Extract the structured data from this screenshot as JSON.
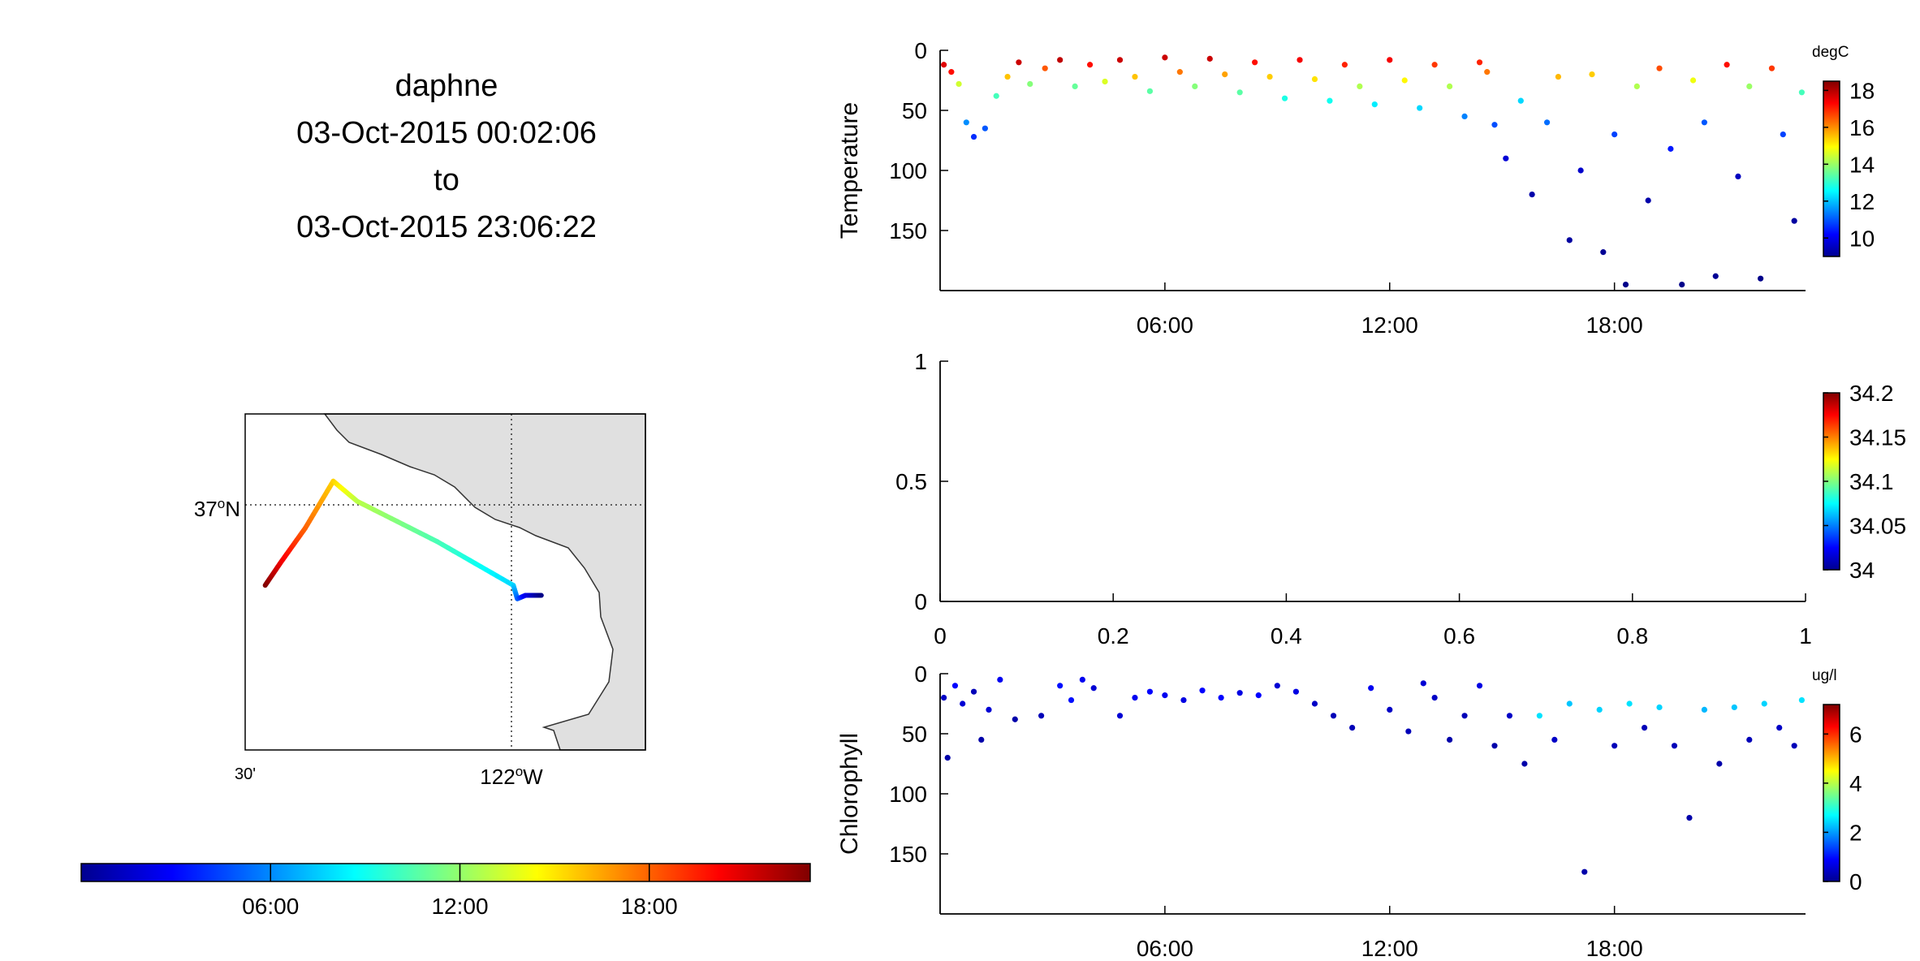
{
  "header": {
    "vehicle": "daphne",
    "start": "03-Oct-2015 00:02:06",
    "to": "to",
    "end": "03-Oct-2015 23:06:22"
  },
  "map": {
    "lat_label": "37",
    "lat_suffix": "N",
    "lon_left_label": "30'",
    "lon_label": "122",
    "lon_suffix": "W",
    "degree": "o",
    "land_color": "#e0e0e0",
    "track": [
      [
        0.05,
        0.51
      ],
      [
        0.09,
        0.44
      ],
      [
        0.15,
        0.34
      ],
      [
        0.22,
        0.2
      ],
      [
        0.28,
        0.26
      ],
      [
        0.48,
        0.38
      ],
      [
        0.67,
        0.51
      ],
      [
        0.68,
        0.55
      ],
      [
        0.7,
        0.54
      ],
      [
        0.74,
        0.54
      ]
    ]
  },
  "time_colorbar": {
    "ticks": [
      "06:00",
      "12:00",
      "18:00"
    ],
    "tick_hours": [
      6,
      12,
      18
    ],
    "range_hours": [
      0,
      23.1
    ]
  },
  "chart_data": [
    {
      "type": "scatter",
      "title": "",
      "ylabel": "Temperature",
      "colorbar_unit": "degC",
      "clim": [
        9,
        18.5
      ],
      "colorbar_ticks": [
        "10",
        "12",
        "14",
        "16",
        "18"
      ],
      "colorbar_tick_values": [
        10,
        12,
        14,
        16,
        18
      ],
      "xlim_hours": [
        0,
        23.1
      ],
      "x_ticks": [
        "06:00",
        "12:00",
        "18:00"
      ],
      "x_tick_hours": [
        6,
        12,
        18
      ],
      "ylim": [
        0,
        200
      ],
      "y_reversed": true,
      "y_ticks": [
        "0",
        "50",
        "100",
        "150"
      ],
      "y_tick_values": [
        0,
        50,
        100,
        150
      ],
      "points": [
        [
          0.1,
          12,
          17.6
        ],
        [
          0.3,
          18,
          17.2
        ],
        [
          0.5,
          28,
          14.5
        ],
        [
          0.7,
          60,
          11.5
        ],
        [
          0.9,
          72,
          10.6
        ],
        [
          1.2,
          65,
          11
        ],
        [
          1.5,
          38,
          13.2
        ],
        [
          1.8,
          22,
          15.5
        ],
        [
          2.1,
          10,
          17.8
        ],
        [
          2.4,
          28,
          13.8
        ],
        [
          2.8,
          15,
          16.5
        ],
        [
          3.2,
          8,
          17.9
        ],
        [
          3.6,
          30,
          13.5
        ],
        [
          4,
          12,
          17.2
        ],
        [
          4.4,
          26,
          14.6
        ],
        [
          4.8,
          8,
          17.8
        ],
        [
          5.2,
          22,
          15.5
        ],
        [
          5.6,
          34,
          13.4
        ],
        [
          6,
          6,
          17.8
        ],
        [
          6.4,
          18,
          16.2
        ],
        [
          6.8,
          30,
          13.8
        ],
        [
          7.2,
          7,
          17.8
        ],
        [
          7.6,
          20,
          15.8
        ],
        [
          8,
          35,
          13.4
        ],
        [
          8.4,
          10,
          17.2
        ],
        [
          8.8,
          22,
          15.4
        ],
        [
          9.2,
          40,
          12.8
        ],
        [
          9.6,
          8,
          17.4
        ],
        [
          10,
          24,
          15.2
        ],
        [
          10.4,
          42,
          12.7
        ],
        [
          10.8,
          12,
          17
        ],
        [
          11.2,
          30,
          14.2
        ],
        [
          11.6,
          45,
          12.4
        ],
        [
          12,
          8,
          17.4
        ],
        [
          12.4,
          25,
          15
        ],
        [
          12.8,
          48,
          12.2
        ],
        [
          13.2,
          12,
          16.8
        ],
        [
          13.6,
          30,
          14.2
        ],
        [
          14,
          55,
          11.4
        ],
        [
          14.4,
          10,
          17
        ],
        [
          14.6,
          18,
          16.2
        ],
        [
          14.8,
          62,
          10.9
        ],
        [
          15.1,
          90,
          9.8
        ],
        [
          15.5,
          42,
          12.2
        ],
        [
          15.8,
          120,
          9.4
        ],
        [
          16.2,
          60,
          11.2
        ],
        [
          16.5,
          22,
          15.6
        ],
        [
          16.8,
          158,
          9.3
        ],
        [
          17.1,
          100,
          9.7
        ],
        [
          17.4,
          20,
          15.4
        ],
        [
          17.7,
          168,
          9.2
        ],
        [
          18,
          70,
          10.8
        ],
        [
          18.3,
          195,
          9.1
        ],
        [
          18.6,
          30,
          14.2
        ],
        [
          18.9,
          125,
          9.4
        ],
        [
          19.2,
          15,
          16.6
        ],
        [
          19.5,
          82,
          10.4
        ],
        [
          19.8,
          195,
          9.1
        ],
        [
          20.1,
          25,
          14.8
        ],
        [
          20.4,
          60,
          11
        ],
        [
          20.7,
          188,
          9.2
        ],
        [
          21,
          12,
          17.2
        ],
        [
          21.3,
          105,
          9.6
        ],
        [
          21.6,
          30,
          14
        ],
        [
          21.9,
          190,
          9.1
        ],
        [
          22.2,
          15,
          16.8
        ],
        [
          22.5,
          70,
          10.8
        ],
        [
          22.8,
          142,
          9.3
        ],
        [
          23,
          35,
          13.2
        ]
      ]
    },
    {
      "type": "scatter",
      "title": "",
      "ylabel": "",
      "colorbar_unit": "",
      "clim": [
        34,
        34.2
      ],
      "colorbar_ticks": [
        "34",
        "34.05",
        "34.1",
        "34.15",
        "34.2"
      ],
      "colorbar_tick_values": [
        34,
        34.05,
        34.1,
        34.15,
        34.2
      ],
      "xlim": [
        0,
        1
      ],
      "x_ticks": [
        "0",
        "0.2",
        "0.4",
        "0.6",
        "0.8",
        "1"
      ],
      "x_tick_values": [
        0,
        0.2,
        0.4,
        0.6,
        0.8,
        1
      ],
      "ylim": [
        0,
        1
      ],
      "y_ticks": [
        "0",
        "0.5",
        "1"
      ],
      "y_tick_values": [
        0,
        0.5,
        1
      ],
      "points": []
    },
    {
      "type": "scatter",
      "title": "",
      "ylabel": "Chlorophyll",
      "colorbar_unit": "ug/l",
      "clim": [
        0,
        7.2
      ],
      "colorbar_ticks": [
        "0",
        "2",
        "4",
        "6"
      ],
      "colorbar_tick_values": [
        0,
        2,
        4,
        6
      ],
      "xlim_hours": [
        0,
        23.1
      ],
      "x_ticks": [
        "06:00",
        "12:00",
        "18:00"
      ],
      "x_tick_hours": [
        6,
        12,
        18
      ],
      "ylim": [
        0,
        200
      ],
      "y_reversed": true,
      "y_ticks": [
        "0",
        "50",
        "100",
        "150"
      ],
      "y_tick_values": [
        0,
        50,
        100,
        150
      ],
      "points": [
        [
          0.1,
          20,
          0.5
        ],
        [
          0.2,
          70,
          0.3
        ],
        [
          0.4,
          10,
          0.9
        ],
        [
          0.6,
          25,
          0.6
        ],
        [
          0.9,
          15,
          0.4
        ],
        [
          1.1,
          55,
          0.3
        ],
        [
          1.3,
          30,
          0.6
        ],
        [
          1.6,
          5,
          0.8
        ],
        [
          2,
          38,
          0.3
        ],
        [
          2.7,
          35,
          0.4
        ],
        [
          3.2,
          10,
          1
        ],
        [
          3.5,
          22,
          1
        ],
        [
          3.8,
          5,
          0.8
        ],
        [
          4.1,
          12,
          0.6
        ],
        [
          4.8,
          35,
          0.6
        ],
        [
          5.2,
          20,
          0.8
        ],
        [
          5.6,
          15,
          0.9
        ],
        [
          6,
          18,
          0.8
        ],
        [
          6.5,
          22,
          0.7
        ],
        [
          7,
          14,
          0.9
        ],
        [
          7.5,
          20,
          0.9
        ],
        [
          8,
          16,
          0.7
        ],
        [
          8.5,
          18,
          0.9
        ],
        [
          9,
          10,
          0.6
        ],
        [
          9.5,
          15,
          0.7
        ],
        [
          10,
          25,
          0.5
        ],
        [
          10.5,
          35,
          0.4
        ],
        [
          11,
          45,
          0.4
        ],
        [
          11.5,
          12,
          0.8
        ],
        [
          12,
          30,
          0.5
        ],
        [
          12.5,
          48,
          0.4
        ],
        [
          12.9,
          8,
          0.6
        ],
        [
          13.2,
          20,
          0.5
        ],
        [
          13.6,
          55,
          0.3
        ],
        [
          14,
          35,
          0.4
        ],
        [
          14.4,
          10,
          0.7
        ],
        [
          14.8,
          60,
          0.3
        ],
        [
          15.2,
          35,
          0.5
        ],
        [
          15.6,
          75,
          0.3
        ],
        [
          16,
          35,
          2.5
        ],
        [
          16.4,
          55,
          0.5
        ],
        [
          16.8,
          25,
          2.3
        ],
        [
          17.2,
          165,
          0.3
        ],
        [
          17.6,
          30,
          2.4
        ],
        [
          18,
          60,
          0.4
        ],
        [
          18.4,
          25,
          2.5
        ],
        [
          18.8,
          45,
          0.4
        ],
        [
          19.2,
          28,
          2.4
        ],
        [
          19.6,
          60,
          0.4
        ],
        [
          20,
          120,
          0.3
        ],
        [
          20.4,
          30,
          2.2
        ],
        [
          20.8,
          75,
          0.3
        ],
        [
          21.2,
          28,
          2.3
        ],
        [
          21.6,
          55,
          0.4
        ],
        [
          22,
          25,
          2.4
        ],
        [
          22.4,
          45,
          0.5
        ],
        [
          22.8,
          60,
          0.4
        ],
        [
          23,
          22,
          2.5
        ]
      ]
    }
  ]
}
